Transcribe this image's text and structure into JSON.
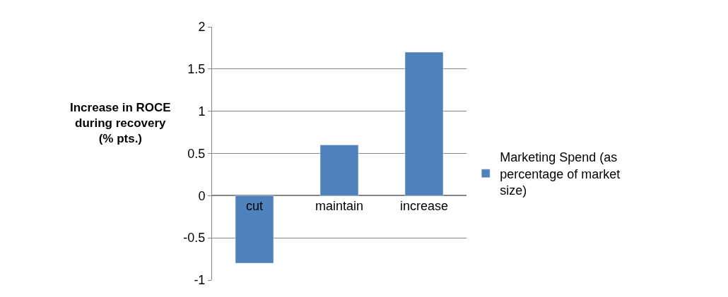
{
  "chart_data": {
    "type": "bar",
    "ylabel": "Increase in ROCE during recovery (% pts.)",
    "categories": [
      "cut",
      "maintain",
      "increase"
    ],
    "series": [
      {
        "name": "Marketing Spend (as percentage of market size)",
        "color": "#4f81bd",
        "values": [
          -0.8,
          0.6,
          1.7
        ]
      }
    ],
    "ylim": [
      -1,
      2
    ],
    "yticks": [
      -1,
      -0.5,
      0,
      0.5,
      1,
      1.5,
      2
    ],
    "grid": "y",
    "legend": "right"
  }
}
